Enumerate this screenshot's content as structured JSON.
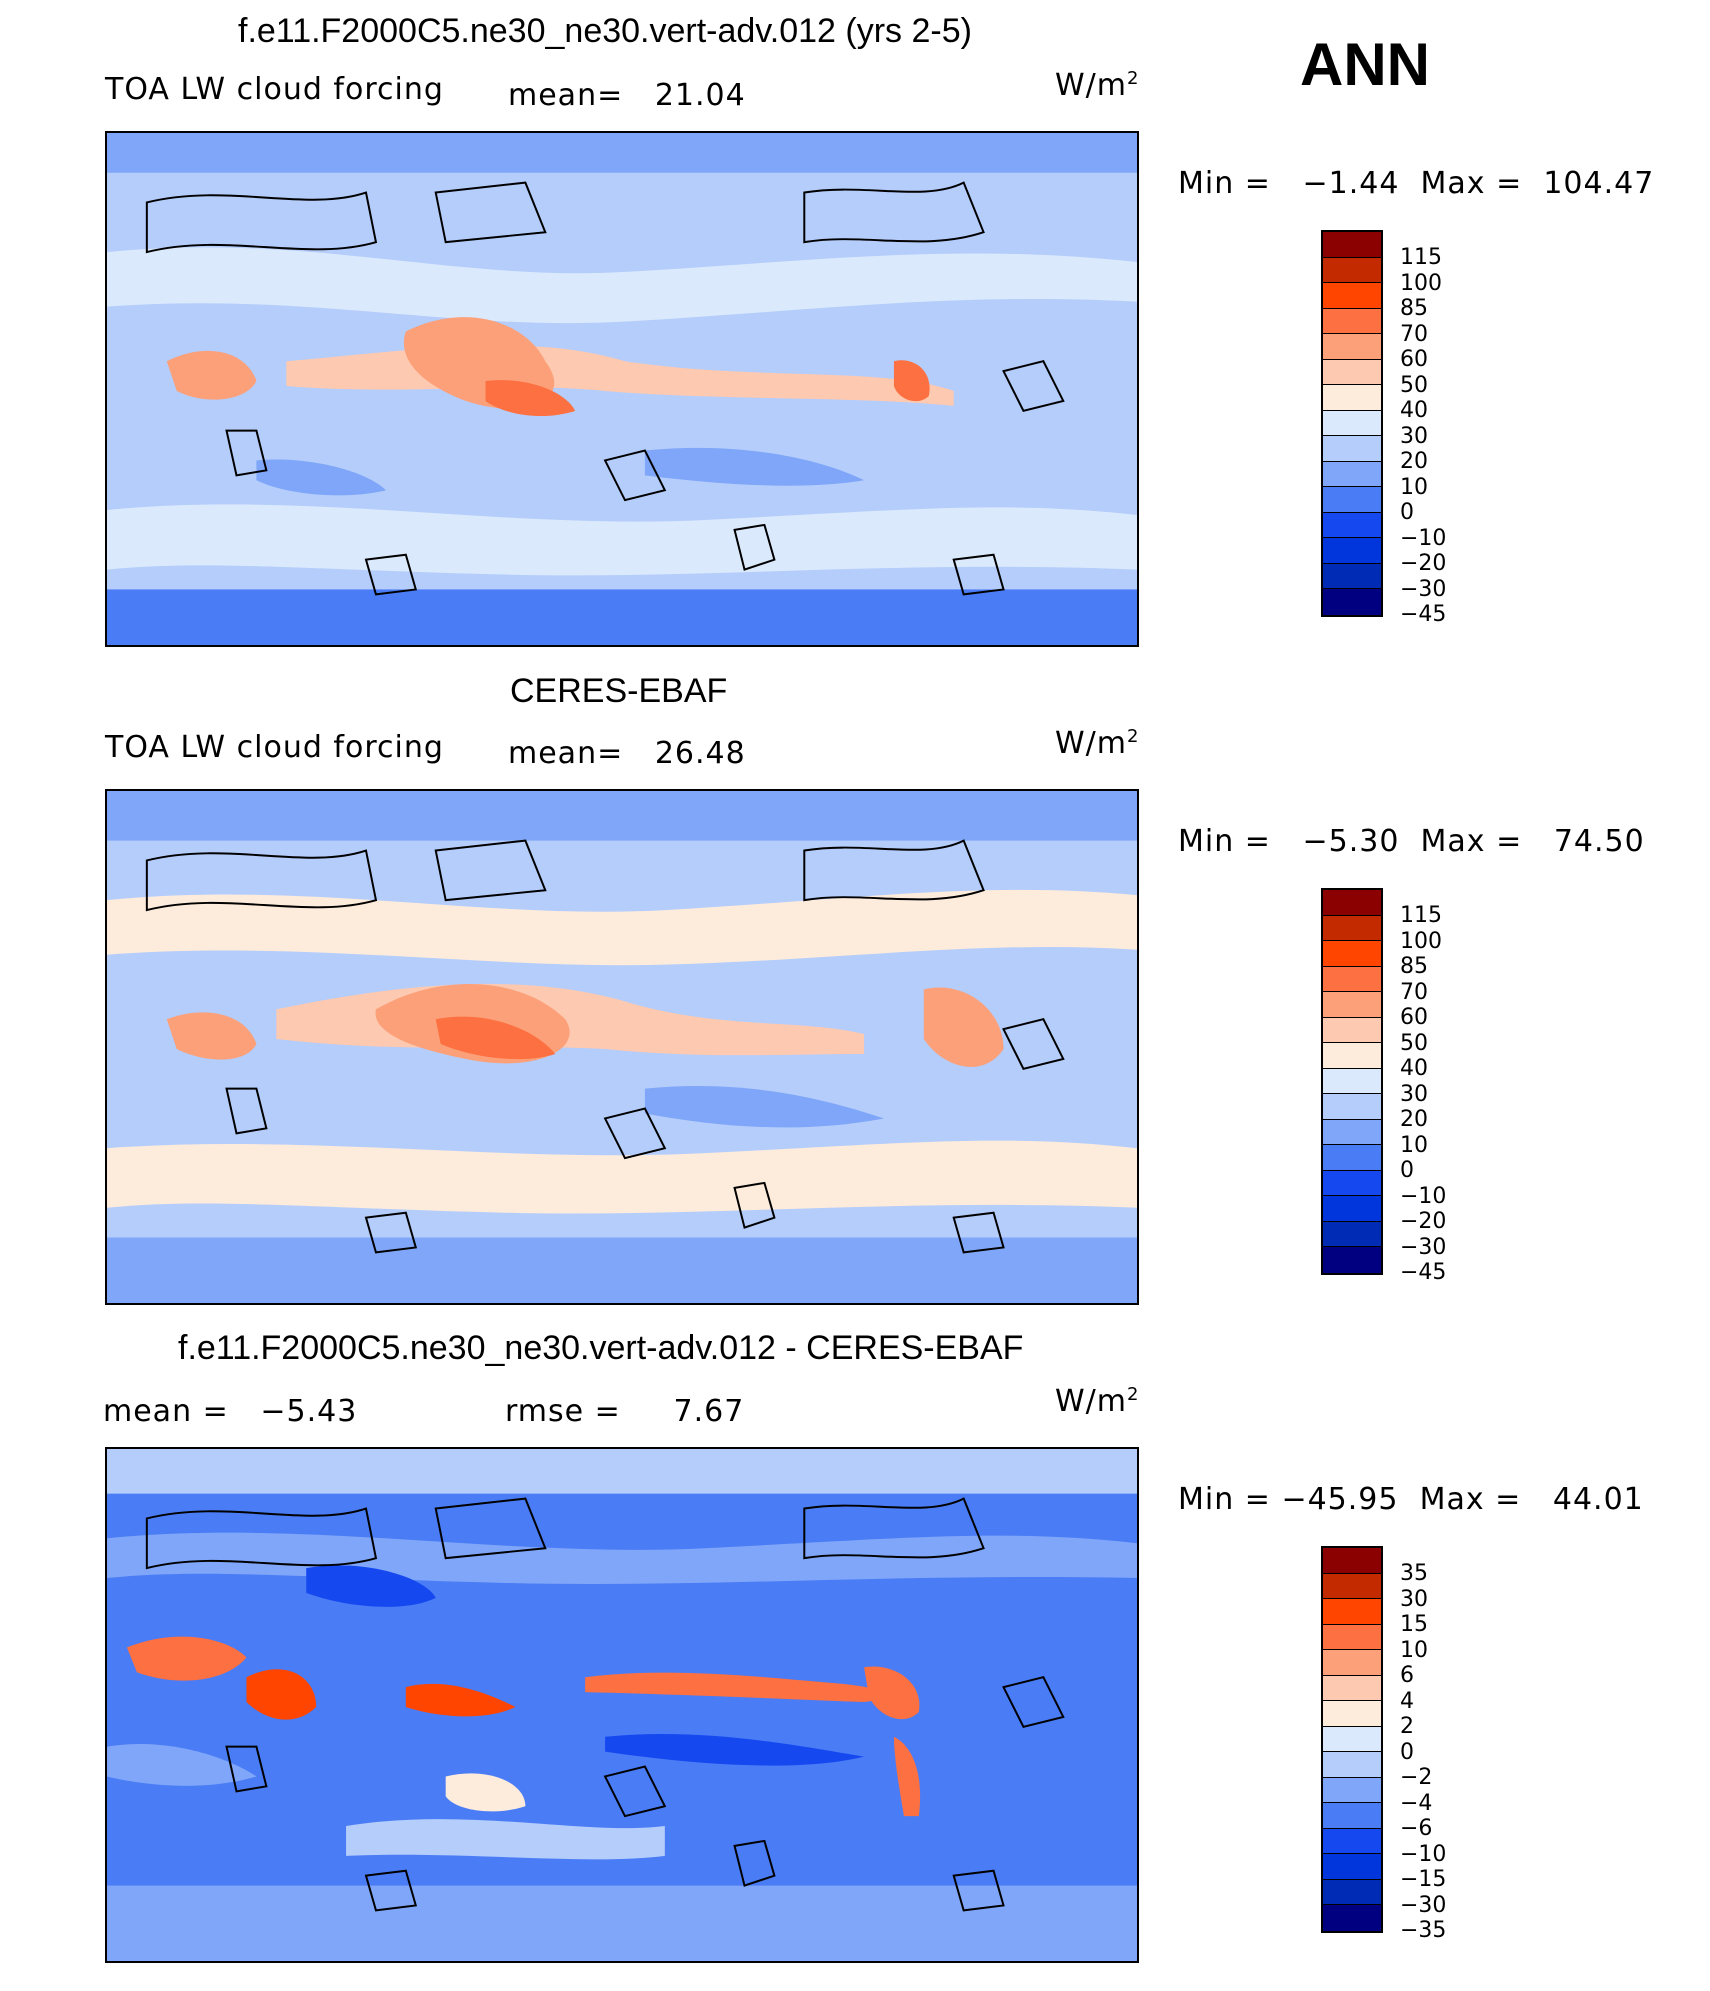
{
  "season": "ANN",
  "units_base": "W/m",
  "units_exp": "2",
  "colors": {
    "main": [
      "#000080",
      "#002bb4",
      "#0036dc",
      "#1648f0",
      "#4a7cf5",
      "#7fa6f8",
      "#b4cdfb",
      "#dbe9fc",
      "#fdebdc",
      "#fdc9b0",
      "#fca079",
      "#fc7041",
      "#ff4500",
      "#c42a00",
      "#8b0000"
    ],
    "diff": [
      "#000080",
      "#002bb4",
      "#0036dc",
      "#1648f0",
      "#4a7cf5",
      "#7fa6f8",
      "#b4cdfb",
      "#dbe9fc",
      "#fdebdc",
      "#fdc9b0",
      "#fca079",
      "#fc7041",
      "#ff4500",
      "#c42a00",
      "#8b0000"
    ]
  },
  "panels": [
    {
      "title": "f.e11.F2000C5.ne30_ne30.vert-adv.012 (yrs 2-5)",
      "variable": "TOA LW cloud forcing",
      "stat1_label": "mean=",
      "stat1_value": "21.04",
      "stat2_label": "",
      "stat2_value": "",
      "min_label": "Min =",
      "min_value": "−1.44",
      "max_label": "Max =",
      "max_value": "104.47",
      "levels": [
        "115",
        "100",
        "85",
        "70",
        "60",
        "50",
        "40",
        "30",
        "20",
        "10",
        "0",
        "−10",
        "−20",
        "−30",
        "−45"
      ]
    },
    {
      "title": "CERES-EBAF",
      "variable": "TOA LW cloud forcing",
      "stat1_label": "mean=",
      "stat1_value": "26.48",
      "stat2_label": "",
      "stat2_value": "",
      "min_label": "Min =",
      "min_value": "−5.30",
      "max_label": "Max =",
      "max_value": "74.50",
      "levels": [
        "115",
        "100",
        "85",
        "70",
        "60",
        "50",
        "40",
        "30",
        "20",
        "10",
        "0",
        "−10",
        "−20",
        "−30",
        "−45"
      ]
    },
    {
      "title": "f.e11.F2000C5.ne30_ne30.vert-adv.012 - CERES-EBAF",
      "variable": "",
      "stat1_label": "mean =",
      "stat1_value": "−5.43",
      "stat2_label": "rmse =",
      "stat2_value": "7.67",
      "min_label": "Min =",
      "min_value": "−45.95",
      "max_label": "Max =",
      "max_value": "44.01",
      "levels": [
        "35",
        "30",
        "15",
        "10",
        "6",
        "4",
        "2",
        "0",
        "−2",
        "−4",
        "−6",
        "−10",
        "−15",
        "−30",
        "−35"
      ]
    }
  ]
}
